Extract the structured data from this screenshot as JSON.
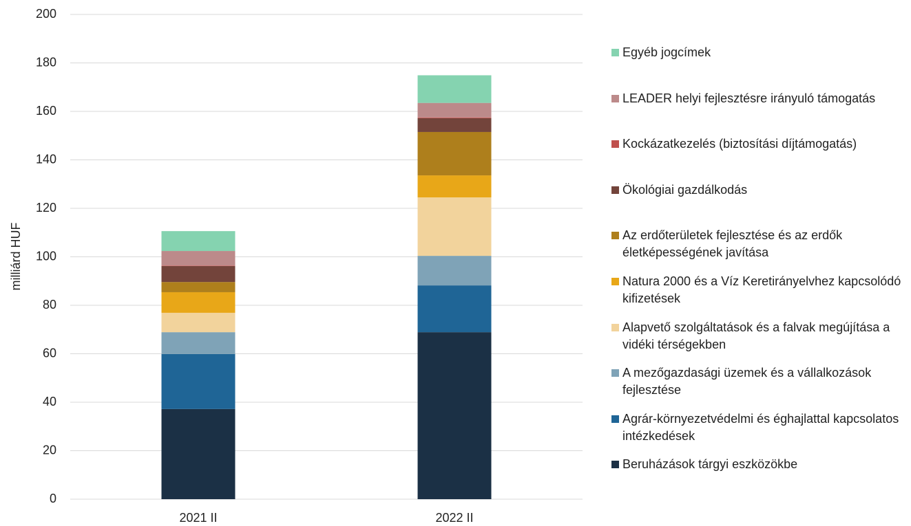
{
  "chart_data": {
    "type": "stacked_bar",
    "y_label": "milliárd HUF",
    "categories": [
      "2021 II",
      "2022 II"
    ],
    "ylim": [
      0,
      200
    ],
    "yticks": [
      0,
      20,
      40,
      60,
      80,
      100,
      120,
      140,
      160,
      180,
      200
    ],
    "grid": true,
    "series": [
      {
        "name": "Beruházások tárgyi eszközökbe",
        "color": "#1b3045",
        "values": [
          37.2,
          68.9
        ]
      },
      {
        "name": "Agrár-környezetvédelmi és éghajlattal kapcsolatos intézkedések",
        "color": "#1f6596",
        "values": [
          22.7,
          19.3
        ]
      },
      {
        "name": "A mezőgazdasági üzemek és a vállalkozások fejlesztése",
        "color": "#7fa3b7",
        "values": [
          9,
          12.2
        ]
      },
      {
        "name": "Alapvető szolgáltatások és a falvak megújítása a vidéki térségekben",
        "color": "#f2d39c",
        "values": [
          8,
          24.1
        ]
      },
      {
        "name": "Natura 2000 és a Víz Keretirányelvhez kapcsolódó kifizetések",
        "color": "#e8a718",
        "values": [
          8.5,
          9.1
        ]
      },
      {
        "name": "Az erdőterületek fejlesztése és az erdők életképességének javítása",
        "color": "#ae7f1c",
        "values": [
          4.2,
          17.9
        ]
      },
      {
        "name": "Ökológiai gazdálkodás",
        "color": "#73443b",
        "values": [
          6.6,
          5.7
        ]
      },
      {
        "name": "Kockázatkezelés (biztosítási díjtámogatás)",
        "color": "#c0504d",
        "values": [
          0.2,
          0.3
        ]
      },
      {
        "name": "LEADER helyi fejlesztésre irányuló támogatás",
        "color": "#bc8a8a",
        "values": [
          6,
          6
        ]
      },
      {
        "name": "Egyéb jogcímek",
        "color": "#85d3b0",
        "values": [
          8.2,
          11.4
        ]
      }
    ]
  }
}
